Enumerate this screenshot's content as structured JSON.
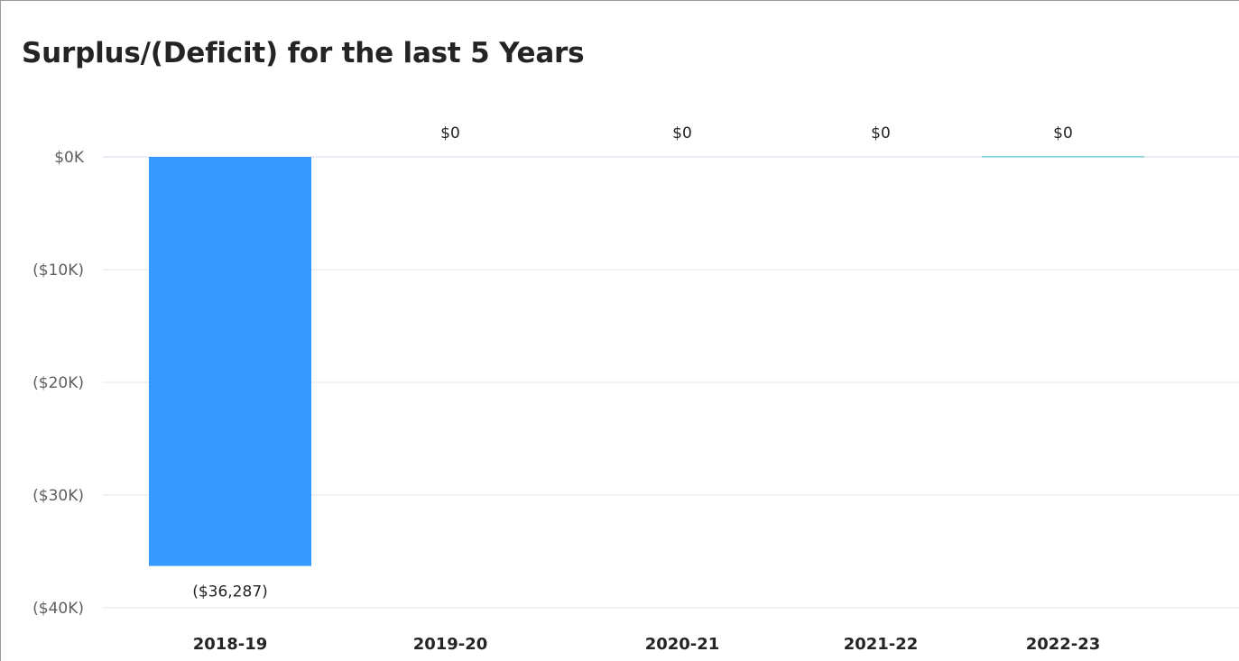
{
  "chart_data": {
    "type": "bar",
    "title": "Surplus/(Deficit) for the last 5 Years",
    "categories": [
      "2018-19",
      "2019-20",
      "2020-21",
      "2021-22",
      "2022-23"
    ],
    "values": [
      -36287,
      0,
      0,
      0,
      0
    ],
    "data_labels": [
      "($36,287)",
      "$0",
      "$0",
      "$0",
      "$0"
    ],
    "y_ticks": [
      0,
      -10000,
      -20000,
      -30000,
      -40000
    ],
    "y_tick_labels": [
      "$0K",
      "($10K)",
      "($20K)",
      "($30K)",
      "($40K)"
    ],
    "ylim": [
      -40000,
      0
    ],
    "xlabel": "",
    "ylabel": "",
    "grid": true,
    "colors": {
      "negative_bar": "#3599FF",
      "zero_bar": "#7FD3DD",
      "gridline": "#EDEDF2",
      "zero_line": "#E4E6F2"
    }
  }
}
